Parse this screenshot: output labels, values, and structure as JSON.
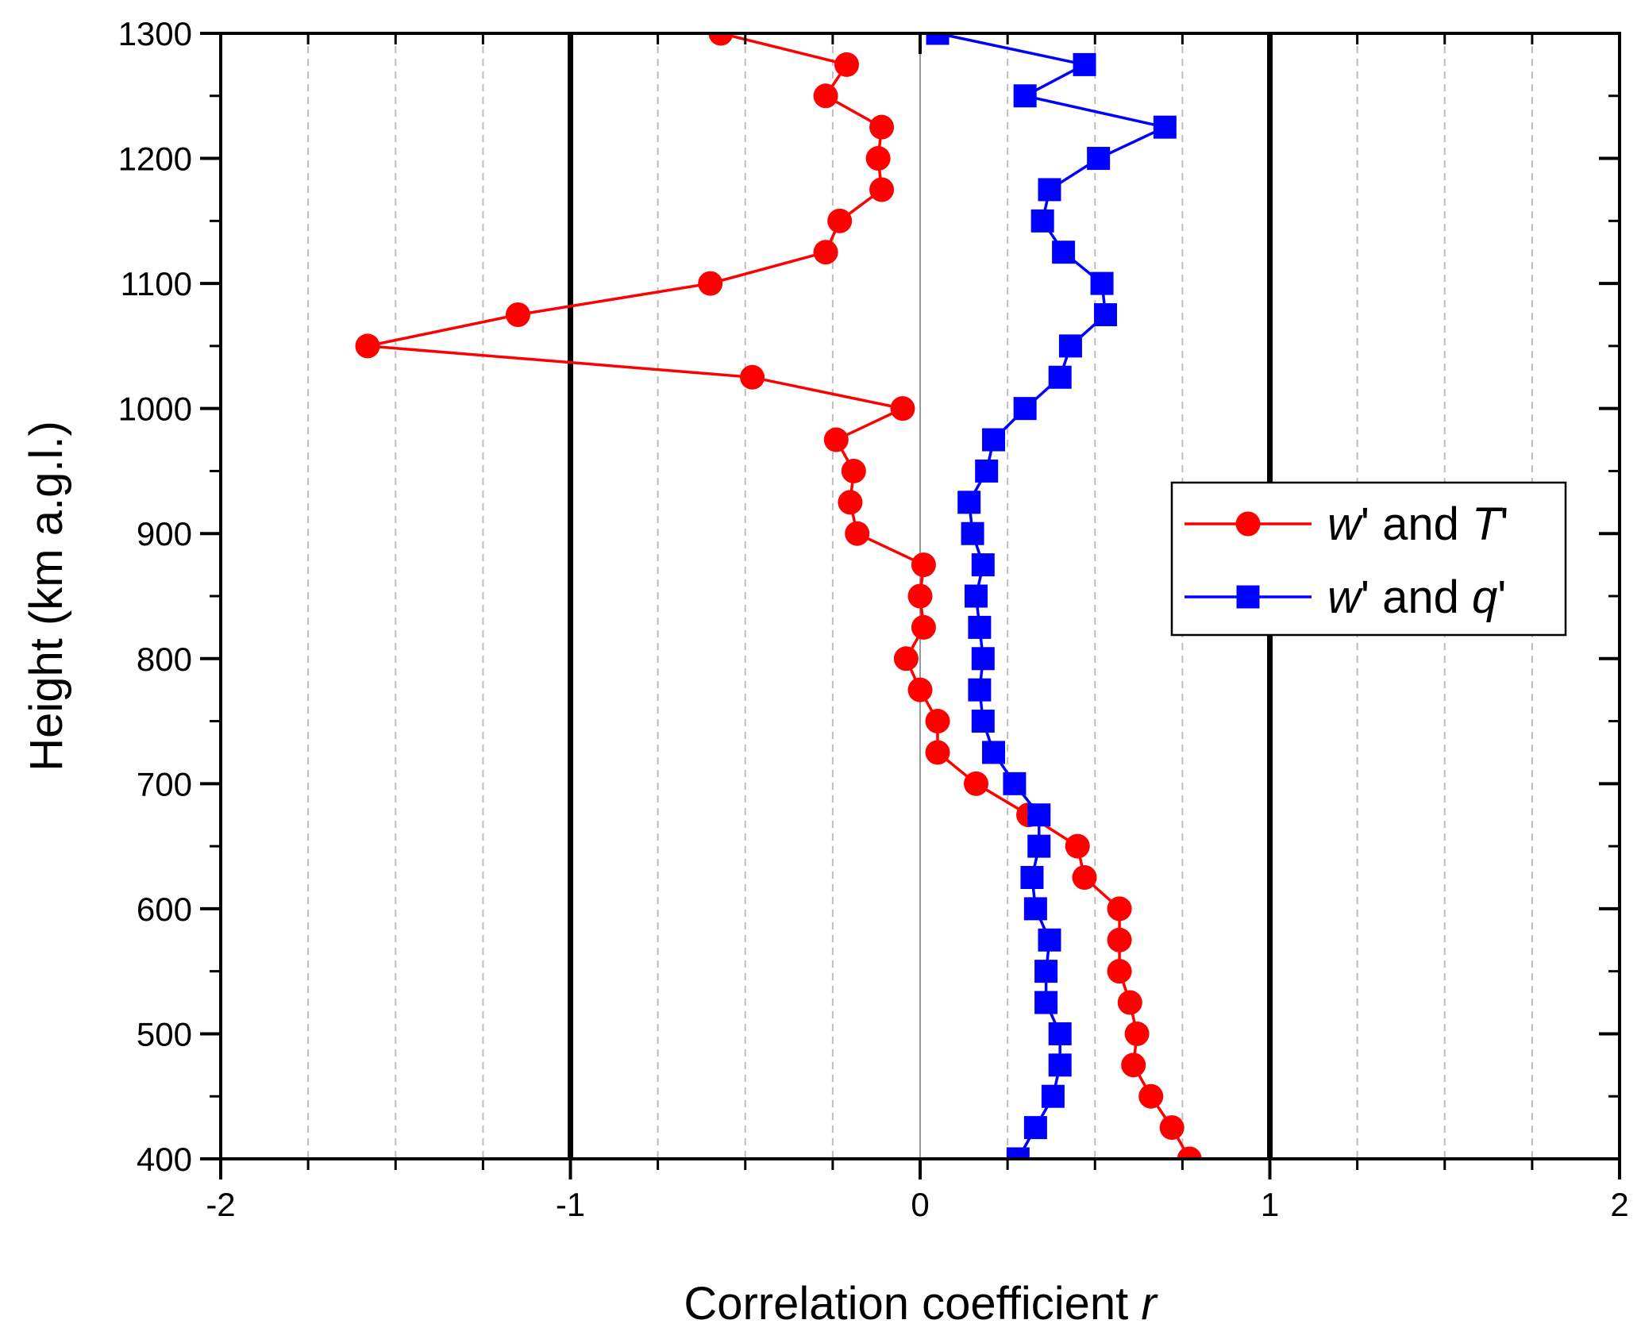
{
  "chart_data": {
    "type": "line",
    "xlabel": "Correlation coefficient ",
    "xlabel_var": "r",
    "ylabel": "Height (km a.g.l.)",
    "xlim": [
      -2,
      2
    ],
    "ylim": [
      400,
      1300
    ],
    "x_ticks": [
      -2,
      -1,
      0,
      1,
      2
    ],
    "x_tick_labels": [
      "-2",
      "-1",
      "0",
      "1",
      "2"
    ],
    "y_ticks": [
      400,
      500,
      600,
      700,
      800,
      900,
      1000,
      1100,
      1200,
      1300
    ],
    "y_tick_labels": [
      "400",
      "500",
      "600",
      "700",
      "800",
      "900",
      "1000",
      "1100",
      "1200",
      "1300"
    ],
    "reference_lines_x": [
      -1,
      0,
      1
    ],
    "grid": "vertical dashed minor lines every 0.25",
    "legend_position": "right",
    "series": [
      {
        "legend_parts": [
          [
            "w",
            true
          ],
          [
            "' and ",
            false
          ],
          [
            "T",
            true
          ],
          [
            "'",
            false
          ]
        ],
        "color": "#ff0000",
        "marker": "circle",
        "points": [
          [
            0.77,
            400
          ],
          [
            0.72,
            425
          ],
          [
            0.66,
            450
          ],
          [
            0.61,
            475
          ],
          [
            0.62,
            500
          ],
          [
            0.6,
            525
          ],
          [
            0.57,
            550
          ],
          [
            0.57,
            575
          ],
          [
            0.57,
            600
          ],
          [
            0.47,
            625
          ],
          [
            0.45,
            650
          ],
          [
            0.31,
            675
          ],
          [
            0.16,
            700
          ],
          [
            0.05,
            725
          ],
          [
            0.05,
            750
          ],
          [
            0.0,
            775
          ],
          [
            -0.04,
            800
          ],
          [
            0.01,
            825
          ],
          [
            0.0,
            850
          ],
          [
            0.01,
            875
          ],
          [
            -0.18,
            900
          ],
          [
            -0.2,
            925
          ],
          [
            -0.19,
            950
          ],
          [
            -0.24,
            975
          ],
          [
            -0.05,
            1000
          ],
          [
            -0.48,
            1025
          ],
          [
            -1.58,
            1050
          ],
          [
            -1.15,
            1075
          ],
          [
            -0.6,
            1100
          ],
          [
            -0.27,
            1125
          ],
          [
            -0.23,
            1150
          ],
          [
            -0.11,
            1175
          ],
          [
            -0.12,
            1200
          ],
          [
            -0.11,
            1225
          ],
          [
            -0.27,
            1250
          ],
          [
            -0.21,
            1275
          ],
          [
            -0.57,
            1300
          ]
        ]
      },
      {
        "legend_parts": [
          [
            "w",
            true
          ],
          [
            "' and ",
            false
          ],
          [
            "q",
            true
          ],
          [
            "'",
            false
          ]
        ],
        "color": "#0000ff",
        "marker": "square",
        "points": [
          [
            0.28,
            400
          ],
          [
            0.33,
            425
          ],
          [
            0.38,
            450
          ],
          [
            0.4,
            475
          ],
          [
            0.4,
            500
          ],
          [
            0.36,
            525
          ],
          [
            0.36,
            550
          ],
          [
            0.37,
            575
          ],
          [
            0.33,
            600
          ],
          [
            0.32,
            625
          ],
          [
            0.34,
            650
          ],
          [
            0.34,
            675
          ],
          [
            0.27,
            700
          ],
          [
            0.21,
            725
          ],
          [
            0.18,
            750
          ],
          [
            0.17,
            775
          ],
          [
            0.18,
            800
          ],
          [
            0.17,
            825
          ],
          [
            0.16,
            850
          ],
          [
            0.18,
            875
          ],
          [
            0.15,
            900
          ],
          [
            0.14,
            925
          ],
          [
            0.19,
            950
          ],
          [
            0.21,
            975
          ],
          [
            0.3,
            1000
          ],
          [
            0.4,
            1025
          ],
          [
            0.43,
            1050
          ],
          [
            0.53,
            1075
          ],
          [
            0.52,
            1100
          ],
          [
            0.41,
            1125
          ],
          [
            0.35,
            1150
          ],
          [
            0.37,
            1175
          ],
          [
            0.51,
            1200
          ],
          [
            0.7,
            1225
          ],
          [
            0.3,
            1250
          ],
          [
            0.47,
            1275
          ],
          [
            0.05,
            1300
          ]
        ]
      }
    ]
  }
}
